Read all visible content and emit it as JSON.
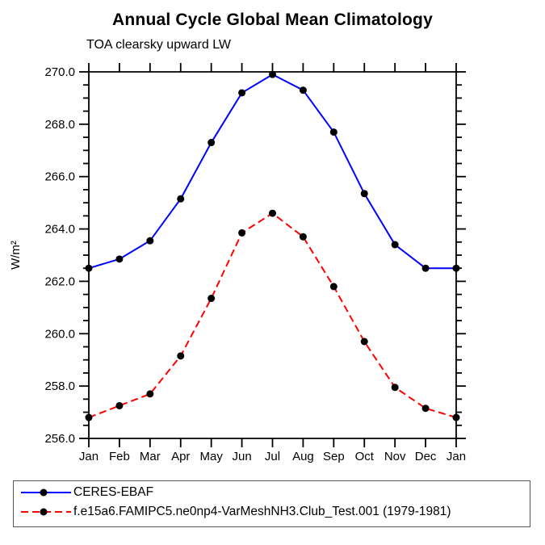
{
  "page": {
    "background": "#ffffff",
    "text_color": "#000000",
    "legend_border_color": "#555555"
  },
  "chart_data": {
    "type": "line",
    "title": "Annual Cycle Global Mean Climatology",
    "subtitle": "TOA clearsky upward LW",
    "ylabel": "W/m²",
    "xlabel": "",
    "categories": [
      "Jan",
      "Feb",
      "Mar",
      "Apr",
      "May",
      "Jun",
      "Jul",
      "Aug",
      "Sep",
      "Oct",
      "Nov",
      "Dec",
      "Jan"
    ],
    "ylim": [
      256.0,
      270.0
    ],
    "ytick_step": 2.0,
    "ytick_minor_step": 0.5,
    "ytick_labels": [
      "256.0",
      "258.0",
      "260.0",
      "262.0",
      "264.0",
      "266.0",
      "268.0",
      "270.0"
    ],
    "grid": false,
    "legend_position": "bottom",
    "series": [
      {
        "name": "CERES-EBAF",
        "color": "#0000ff",
        "style": "solid",
        "marker": "circle",
        "marker_color": "#000000",
        "values": [
          262.5,
          262.85,
          263.55,
          265.15,
          267.3,
          269.2,
          269.9,
          269.3,
          267.7,
          265.35,
          263.4,
          262.5,
          262.5
        ]
      },
      {
        "name": "f.e15a6.FAMIPC5.ne0np4-VarMeshNH3.Club_Test.001 (1979-1981)",
        "color": "#ff0000",
        "style": "dashed",
        "marker": "circle",
        "marker_color": "#000000",
        "values": [
          256.8,
          257.25,
          257.7,
          259.15,
          261.35,
          263.85,
          264.6,
          263.7,
          261.8,
          259.7,
          257.95,
          257.15,
          256.8
        ]
      }
    ]
  }
}
